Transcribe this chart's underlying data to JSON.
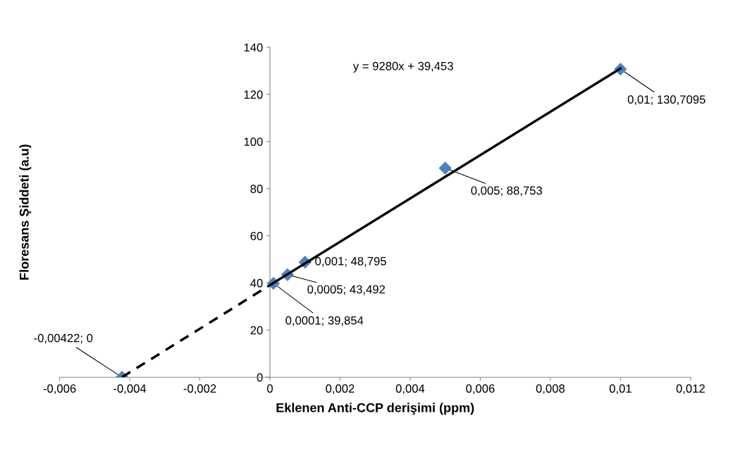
{
  "chart_data": {
    "type": "scatter",
    "xlabel": "Eklenen Anti-CCP derişimi (ppm)",
    "ylabel": "Floresans Şiddeti (a.u)",
    "annotations": [
      "y = 9280x + 39,453"
    ],
    "series": [
      {
        "type": "line",
        "color": "#000000",
        "line_style": "solid",
        "marker": "none",
        "x": [
          0.0001,
          0.01
        ],
        "values": [
          40,
          131
        ]
      },
      {
        "type": "line",
        "color": "#000000",
        "line_style": "dashed",
        "marker": "none",
        "x": [
          -0.00422,
          0.0001
        ],
        "values": [
          0,
          40
        ]
      },
      {
        "color": "#4f81bd",
        "marker": "diamond",
        "x": [
          -0.00422,
          0.0001,
          0.0005,
          0.001,
          0.005,
          0.01
        ],
        "values": [
          0,
          39.854,
          43.492,
          48.795,
          88.753,
          130.7095
        ],
        "value_labels": [
          "-0,00422; 0",
          "0,0001; 39,854",
          "0,0005; 43,492",
          "0,001; 48,795",
          "0,005; 88,753",
          "0,01; 130,7095"
        ]
      }
    ],
    "xlim": [
      -0.006,
      0.012
    ],
    "xticks": [
      {
        "value": -0.006,
        "label": "-0,006"
      },
      {
        "value": -0.004,
        "label": "-0,004"
      },
      {
        "value": -0.002,
        "label": "-0,002"
      },
      {
        "value": 0,
        "label": "0"
      },
      {
        "value": 0.002,
        "label": "0,002"
      },
      {
        "value": 0.004,
        "label": "0,004"
      },
      {
        "value": 0.006,
        "label": "0,006"
      },
      {
        "value": 0.008,
        "label": "0,008"
      },
      {
        "value": 0.01,
        "label": "0,01"
      },
      {
        "value": 0.012,
        "label": "0,012"
      }
    ],
    "ylim": [
      0,
      140
    ],
    "yticks": [
      0,
      20,
      40,
      60,
      80,
      100,
      120,
      140
    ],
    "grid": false,
    "legend": false
  }
}
